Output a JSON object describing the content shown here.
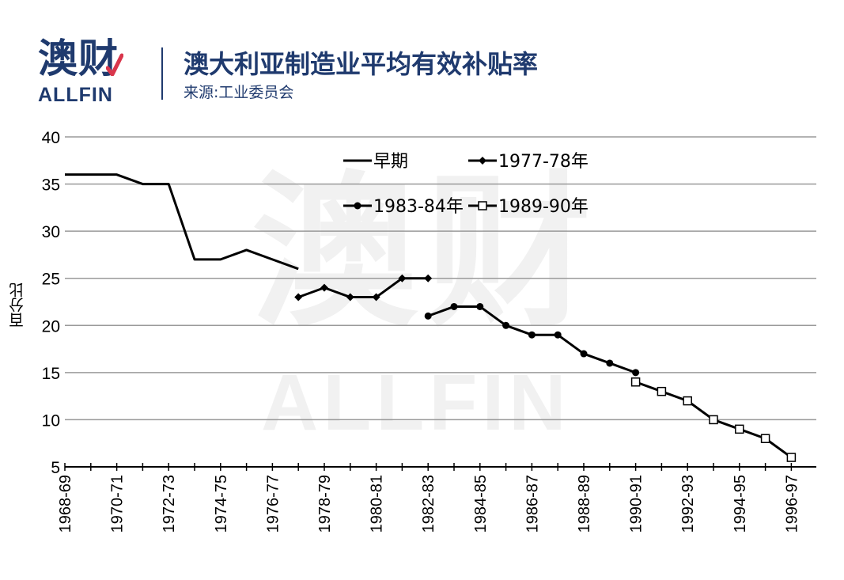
{
  "brand": {
    "name_cn": "澳财",
    "name_en": "ALLFIN"
  },
  "header": {
    "title": "澳大利亚制造业平均有效补贴率",
    "source": "来源:工业委员会"
  },
  "watermark": {
    "cn": "澳财",
    "en": "ALLFIN"
  },
  "colors": {
    "brand": "#1f3a6e",
    "accent": "#d9364c",
    "line": "#000000",
    "grid": "#9a9a9a"
  },
  "chart_data": {
    "type": "line",
    "title": "澳大利亚制造业平均有效补贴率",
    "ylabel": "百分比",
    "xlabel": "",
    "ylim": [
      5,
      40
    ],
    "yticks": [
      5,
      10,
      15,
      20,
      25,
      30,
      35,
      40
    ],
    "grid": true,
    "legend_position": "top-center",
    "categories": [
      "1968-69",
      "1969-70",
      "1970-71",
      "1971-72",
      "1972-73",
      "1973-74",
      "1974-75",
      "1975-76",
      "1976-77",
      "1977-78",
      "1978-79",
      "1979-80",
      "1980-81",
      "1981-82",
      "1982-83",
      "1983-84",
      "1984-85",
      "1985-86",
      "1986-87",
      "1987-88",
      "1988-89",
      "1989-90",
      "1990-91",
      "1991-92",
      "1992-93",
      "1993-94",
      "1994-95",
      "1995-96",
      "1996-97"
    ],
    "xtick_labels": [
      "1968-69",
      "1970-71",
      "1972-73",
      "1974-75",
      "1976-77",
      "1978-79",
      "1980-81",
      "1982-83",
      "1984-85",
      "1986-87",
      "1988-89",
      "1990-91",
      "1992-93",
      "1994-95",
      "1996-97"
    ],
    "series": [
      {
        "name": "早期",
        "marker": "none",
        "points": [
          [
            "1968-69",
            36
          ],
          [
            "1969-70",
            36
          ],
          [
            "1970-71",
            36
          ],
          [
            "1971-72",
            35
          ],
          [
            "1972-73",
            35
          ],
          [
            "1973-74",
            27
          ],
          [
            "1974-75",
            27
          ],
          [
            "1975-76",
            28
          ],
          [
            "1976-77",
            27
          ],
          [
            "1977-78",
            26
          ]
        ]
      },
      {
        "name": "1977-78年",
        "marker": "diamond",
        "points": [
          [
            "1977-78",
            23
          ],
          [
            "1978-79",
            24
          ],
          [
            "1979-80",
            23
          ],
          [
            "1980-81",
            23
          ],
          [
            "1981-82",
            25
          ],
          [
            "1982-83",
            25
          ]
        ]
      },
      {
        "name": "1983-84年",
        "marker": "dot",
        "points": [
          [
            "1982-83",
            21
          ],
          [
            "1983-84",
            22
          ],
          [
            "1984-85",
            22
          ],
          [
            "1985-86",
            20
          ],
          [
            "1986-87",
            19
          ],
          [
            "1987-88",
            19
          ],
          [
            "1988-89",
            17
          ],
          [
            "1989-90",
            16
          ],
          [
            "1990-91",
            15
          ]
        ]
      },
      {
        "name": "1989-90年",
        "marker": "square",
        "points": [
          [
            "1990-91",
            14
          ],
          [
            "1991-92",
            13
          ],
          [
            "1992-93",
            12
          ],
          [
            "1993-94",
            10
          ],
          [
            "1994-95",
            9
          ],
          [
            "1995-96",
            8
          ],
          [
            "1996-97",
            6
          ]
        ]
      }
    ]
  }
}
